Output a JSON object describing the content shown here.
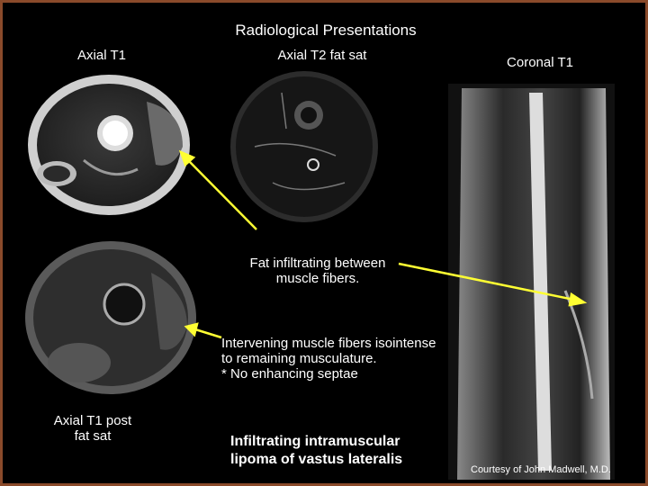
{
  "title": "Radiological Presentations",
  "images": [
    {
      "label": [
        "Axial T1"
      ]
    },
    {
      "label": [
        "Axial T2 fat sat"
      ]
    },
    {
      "label": [
        "Coronal T1"
      ]
    },
    {
      "label": [
        "Axial T1 post",
        "fat sat"
      ]
    }
  ],
  "annotations": [
    {
      "lines": [
        "Fat infiltrating between",
        "muscle fibers."
      ]
    },
    {
      "lines": [
        "Intervening muscle fibers isointense",
        "to remaining musculature.",
        "* No enhancing septae"
      ]
    },
    {
      "lines": [
        "Infiltrating intramuscular",
        "lipoma of vastus lateralis"
      ]
    }
  ],
  "credit": "Courtesy of John Madwell, M.D."
}
